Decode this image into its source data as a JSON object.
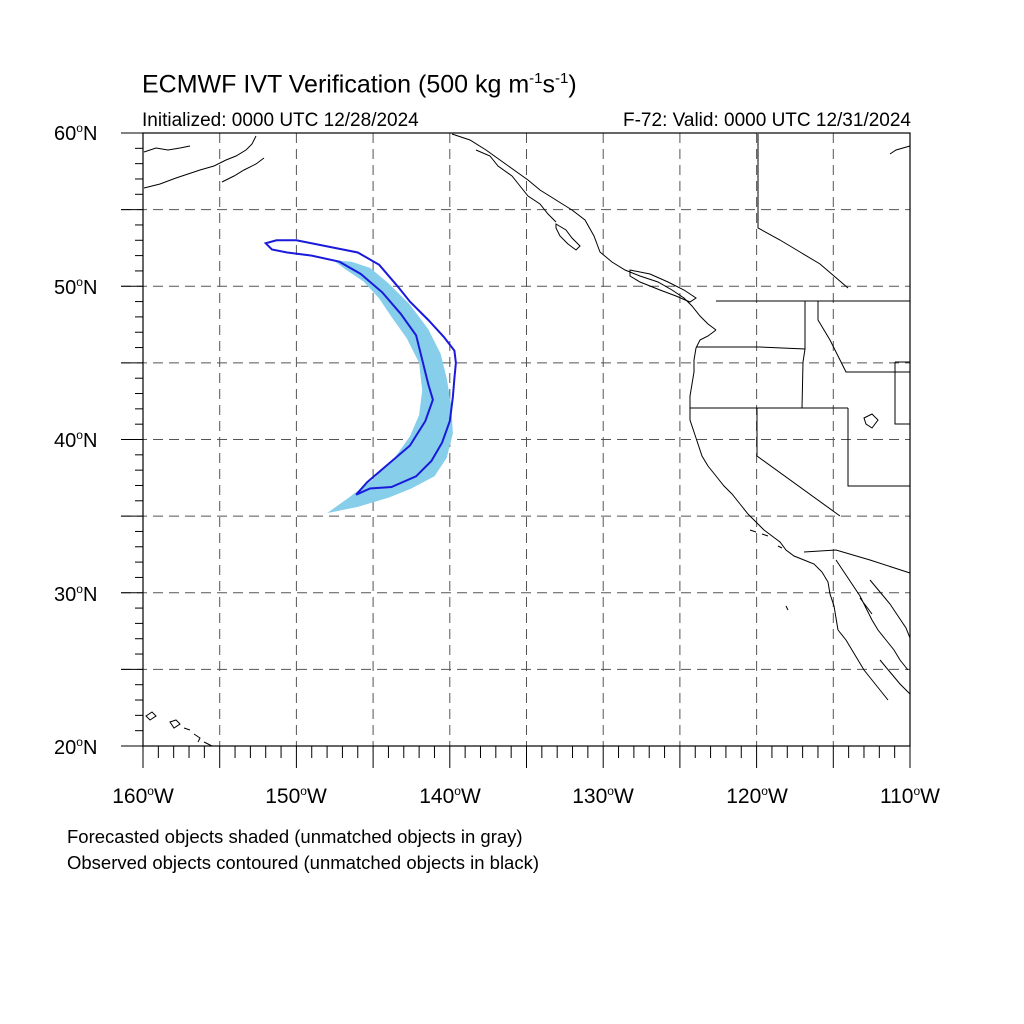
{
  "title": {
    "prefix": "ECMWF IVT Verification (500 kg m",
    "exp1": "-1",
    "mid": "s",
    "exp2": "-1",
    "suffix": ")"
  },
  "subtitle_left": "Initialized: 0000 UTC 12/28/2024",
  "subtitle_right": "F-72: Valid: 0000 UTC 12/31/2024",
  "map": {
    "lon_range": [
      -160,
      -110
    ],
    "lat_range": [
      20,
      60
    ],
    "grid": "dashed",
    "lat_labels": [
      {
        "value": 60,
        "text": "60",
        "suffix": "N"
      },
      {
        "value": 50,
        "text": "50",
        "suffix": "N"
      },
      {
        "value": 40,
        "text": "40",
        "suffix": "N"
      },
      {
        "value": 30,
        "text": "30",
        "suffix": "N"
      },
      {
        "value": 20,
        "text": "20",
        "suffix": "N"
      }
    ],
    "lon_labels": [
      {
        "value": -160,
        "text": "160",
        "suffix": "W"
      },
      {
        "value": -150,
        "text": "150",
        "suffix": "W"
      },
      {
        "value": -140,
        "text": "140",
        "suffix": "W"
      },
      {
        "value": -130,
        "text": "130",
        "suffix": "W"
      },
      {
        "value": -120,
        "text": "120",
        "suffix": "W"
      },
      {
        "value": -110,
        "text": "110",
        "suffix": "W"
      }
    ],
    "forecast_object": {
      "color": "#87ceeb",
      "polygon": [
        [
          -148,
          35.2
        ],
        [
          -146,
          35.6
        ],
        [
          -144,
          36.2
        ],
        [
          -142.5,
          36.8
        ],
        [
          -141,
          37.6
        ],
        [
          -140.2,
          38.8
        ],
        [
          -139.8,
          40.4
        ],
        [
          -139.9,
          42.2
        ],
        [
          -140.2,
          44
        ],
        [
          -140.6,
          45.6
        ],
        [
          -141.4,
          47.2
        ],
        [
          -142.6,
          48.8
        ],
        [
          -144,
          50.2
        ],
        [
          -145.2,
          51.2
        ],
        [
          -146.4,
          51.6
        ],
        [
          -147.6,
          51.7
        ],
        [
          -146.8,
          51.1
        ],
        [
          -145.6,
          50.3
        ],
        [
          -144.6,
          49.2
        ],
        [
          -143.8,
          48
        ],
        [
          -142.8,
          46.6
        ],
        [
          -142,
          45
        ],
        [
          -141.8,
          43.2
        ],
        [
          -142,
          41.6
        ],
        [
          -142.6,
          40.2
        ],
        [
          -143.6,
          38.8
        ],
        [
          -145,
          37.4
        ],
        [
          -146.6,
          36.2
        ]
      ]
    },
    "observed_object": {
      "color": "#1a1adb",
      "polygon": [
        [
          -146.1,
          36.4
        ],
        [
          -145.2,
          36.8
        ],
        [
          -143.8,
          36.9
        ],
        [
          -142.2,
          37.6
        ],
        [
          -141.2,
          38.6
        ],
        [
          -140.5,
          39.8
        ],
        [
          -140,
          41.2
        ],
        [
          -139.8,
          42.8
        ],
        [
          -139.7,
          44
        ],
        [
          -139.6,
          45
        ],
        [
          -139.7,
          45.8
        ],
        [
          -140.4,
          46.7
        ],
        [
          -141.4,
          47.8
        ],
        [
          -142.6,
          49
        ],
        [
          -143.4,
          50
        ],
        [
          -144.6,
          51.4
        ],
        [
          -146,
          52.2
        ],
        [
          -148,
          52.6
        ],
        [
          -150,
          53
        ],
        [
          -151.3,
          53
        ],
        [
          -152,
          52.8
        ],
        [
          -151.6,
          52.4
        ],
        [
          -150.6,
          52.2
        ],
        [
          -149,
          52
        ],
        [
          -147.2,
          51.6
        ],
        [
          -145.8,
          50.8
        ],
        [
          -144.4,
          49.6
        ],
        [
          -143.2,
          48.2
        ],
        [
          -142.2,
          46.8
        ],
        [
          -141.8,
          45.2
        ],
        [
          -141.4,
          43.6
        ],
        [
          -141.1,
          42.6
        ],
        [
          -141.6,
          41.2
        ],
        [
          -142.6,
          39.6
        ],
        [
          -144,
          38.4
        ],
        [
          -145.4,
          37.2
        ]
      ]
    }
  },
  "notes": [
    "Forecasted objects shaded (unmatched objects in gray)",
    "Observed objects contoured (unmatched objects in black)"
  ]
}
